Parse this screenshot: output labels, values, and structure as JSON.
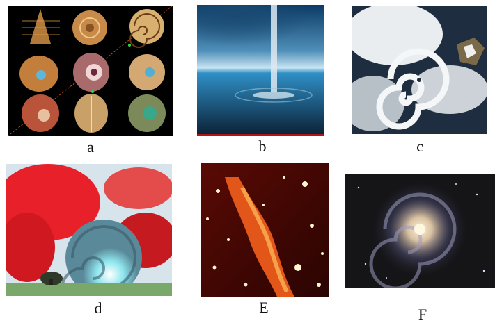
{
  "figure": {
    "panels": [
      {
        "id": "a",
        "label": "a",
        "subject": "nautilus-shells"
      },
      {
        "id": "b",
        "label": "b",
        "subject": "waterspout"
      },
      {
        "id": "c",
        "label": "c",
        "subject": "cyclone-satellite"
      },
      {
        "id": "d",
        "label": "d",
        "subject": "red-vortex"
      },
      {
        "id": "e",
        "label": "E",
        "subject": "nebula-filament"
      },
      {
        "id": "f",
        "label": "F",
        "subject": "spiral-galaxy"
      }
    ]
  },
  "colors": {
    "background": "#ffffff",
    "caption": "#111111",
    "shell_panel_bg": "#000000",
    "vortex_red": "#e8202a",
    "vortex_cyan": "#7fe6ef",
    "nebula_orange": "#e2561a"
  }
}
